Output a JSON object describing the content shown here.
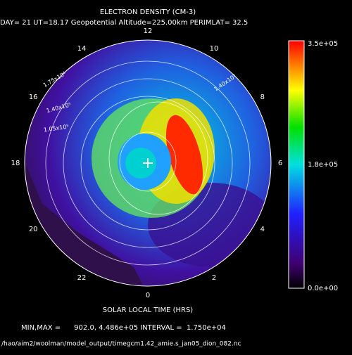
{
  "header": {
    "title": "ELECTRON DENSITY (CM-3)",
    "subtitle": "DAY= 21 UT=18.17 Geopotential Altitude=225.00km PERIMLAT= 32.5"
  },
  "hour_labels": [
    "12",
    "14",
    "16",
    "18",
    "20",
    "22",
    "0",
    "2",
    "4",
    "6",
    "8",
    "10"
  ],
  "x_axis_label": "SOLAR LOCAL TIME (HRS)",
  "contour_labels": [
    "1.75x10⁵",
    "1.40x10⁵",
    "1.05x10⁵",
    "1.40x10⁵"
  ],
  "colorbar": {
    "labels": [
      "3.5e+05",
      "1.8e+05",
      "0.0e+00"
    ]
  },
  "footer": {
    "stats": "MIN,MAX =      902.0, 4.486e+05 INTERVAL =  1.750e+04",
    "file": "/hao/aim2/woolman/model_output/timegcm1.42_amie.s_jan05_dion_082.nc"
  }
}
